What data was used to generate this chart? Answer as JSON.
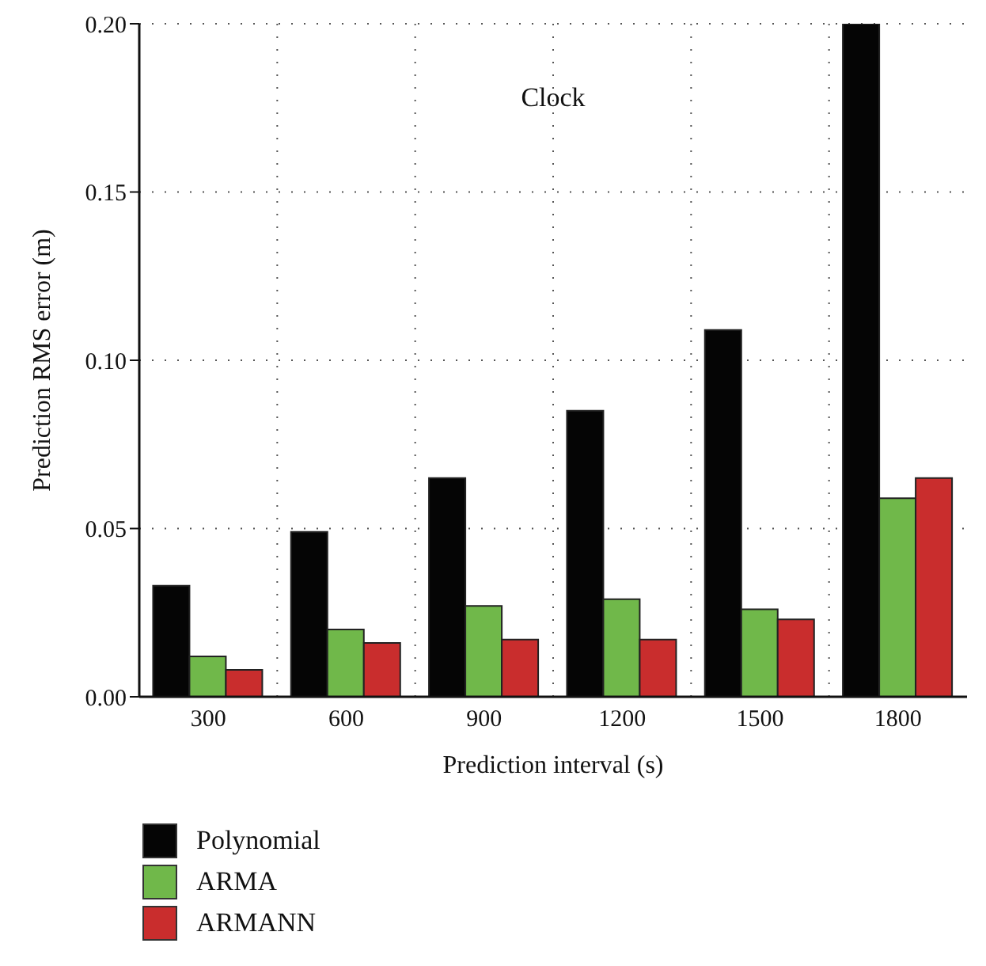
{
  "chart_data": {
    "type": "bar",
    "xlabel": "Prediction interval (s)",
    "ylabel": "Prediction RMS error (m)",
    "annotations": [
      "Clock"
    ],
    "categories": [
      "300",
      "600",
      "900",
      "1200",
      "1500",
      "1800"
    ],
    "series": [
      {
        "name": "Polynomial",
        "color": "#050505",
        "values": [
          0.033,
          0.049,
          0.065,
          0.085,
          0.109,
          0.2
        ]
      },
      {
        "name": "ARMA",
        "color": "#70b84a",
        "values": [
          0.012,
          0.02,
          0.027,
          0.029,
          0.026,
          0.059
        ]
      },
      {
        "name": "ARMANN",
        "color": "#c92d2d",
        "values": [
          0.008,
          0.016,
          0.017,
          0.017,
          0.023,
          0.065
        ]
      }
    ],
    "ylim": [
      0,
      0.2
    ],
    "yticks": [
      {
        "value": 0,
        "label": "0.00"
      },
      {
        "value": 0.05,
        "label": "0.05"
      },
      {
        "value": 0.1,
        "label": "0.10"
      },
      {
        "value": 0.15,
        "label": "0.15"
      },
      {
        "value": 0.2,
        "label": "0.20"
      }
    ],
    "grid": true,
    "legend": "bottom left"
  }
}
